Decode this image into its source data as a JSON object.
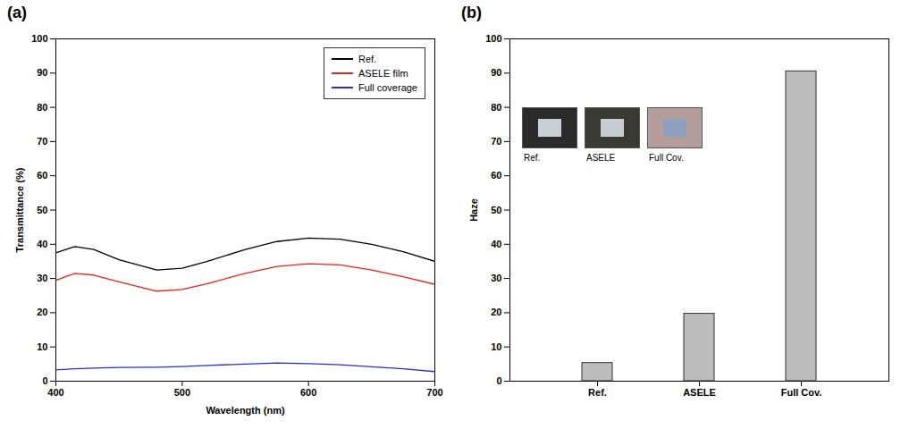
{
  "chart_data": [
    {
      "type": "line",
      "panel": "(a)",
      "x_label": "Wavelength (nm)",
      "y_label": "Transmittance (%)",
      "x": [
        400,
        415,
        430,
        450,
        480,
        500,
        520,
        550,
        575,
        600,
        625,
        650,
        675,
        700
      ],
      "series": [
        {
          "name": "Ref.",
          "color": "#000000",
          "values": [
            37.5,
            39.3,
            38.5,
            35.5,
            32.5,
            33,
            35,
            38.5,
            40.8,
            41.8,
            41.5,
            40,
            37.8,
            35
          ]
        },
        {
          "name": "ASELE film",
          "color": "#e8211b",
          "values": [
            29.5,
            31.5,
            31,
            29,
            26.3,
            26.8,
            28.5,
            31.5,
            33.5,
            34.3,
            34,
            32.5,
            30.5,
            28.3
          ]
        },
        {
          "name": "Full coverage",
          "color": "#2b2bd9",
          "values": [
            3.3,
            3.6,
            3.8,
            4,
            4.1,
            4.3,
            4.6,
            5,
            5.3,
            5.1,
            4.8,
            4.2,
            3.6,
            2.8
          ]
        }
      ],
      "xlim": [
        400,
        700
      ],
      "xticks": [
        400,
        500,
        600,
        700
      ],
      "ylim": [
        0,
        100
      ],
      "yticks": [
        0,
        10,
        20,
        30,
        40,
        50,
        60,
        70,
        80,
        90,
        100
      ],
      "legend": "upper right",
      "grid": false
    },
    {
      "type": "bar",
      "panel": "(b)",
      "y_label": "Haze",
      "categories": [
        "Ref.",
        "ASELE",
        "Full Cov."
      ],
      "values": [
        5.3,
        19.7,
        90.5
      ],
      "color": "#bdbdbd",
      "ylim": [
        0,
        100
      ],
      "yticks": [
        0,
        10,
        20,
        30,
        40,
        50,
        60,
        70,
        80,
        90,
        100
      ],
      "annotations": [
        "Ref.",
        "ASELE",
        "Full Cov."
      ],
      "grid": false
    }
  ]
}
